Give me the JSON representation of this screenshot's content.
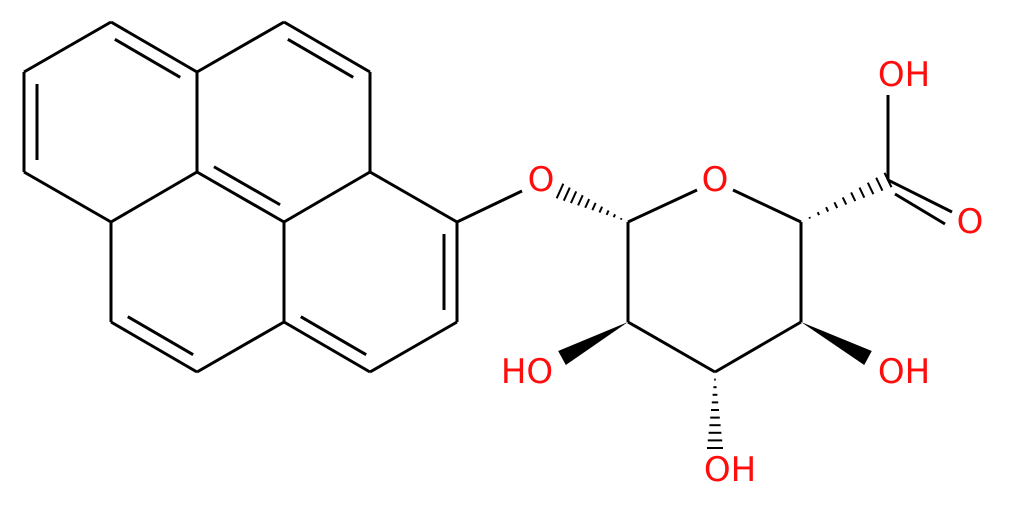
{
  "atoms": [
    {
      "label": "O"
    },
    {
      "label": "O"
    },
    {
      "label": "OH"
    },
    {
      "label": "O"
    },
    {
      "label": "HO"
    },
    {
      "label": "OH"
    },
    {
      "label": "OH"
    }
  ]
}
